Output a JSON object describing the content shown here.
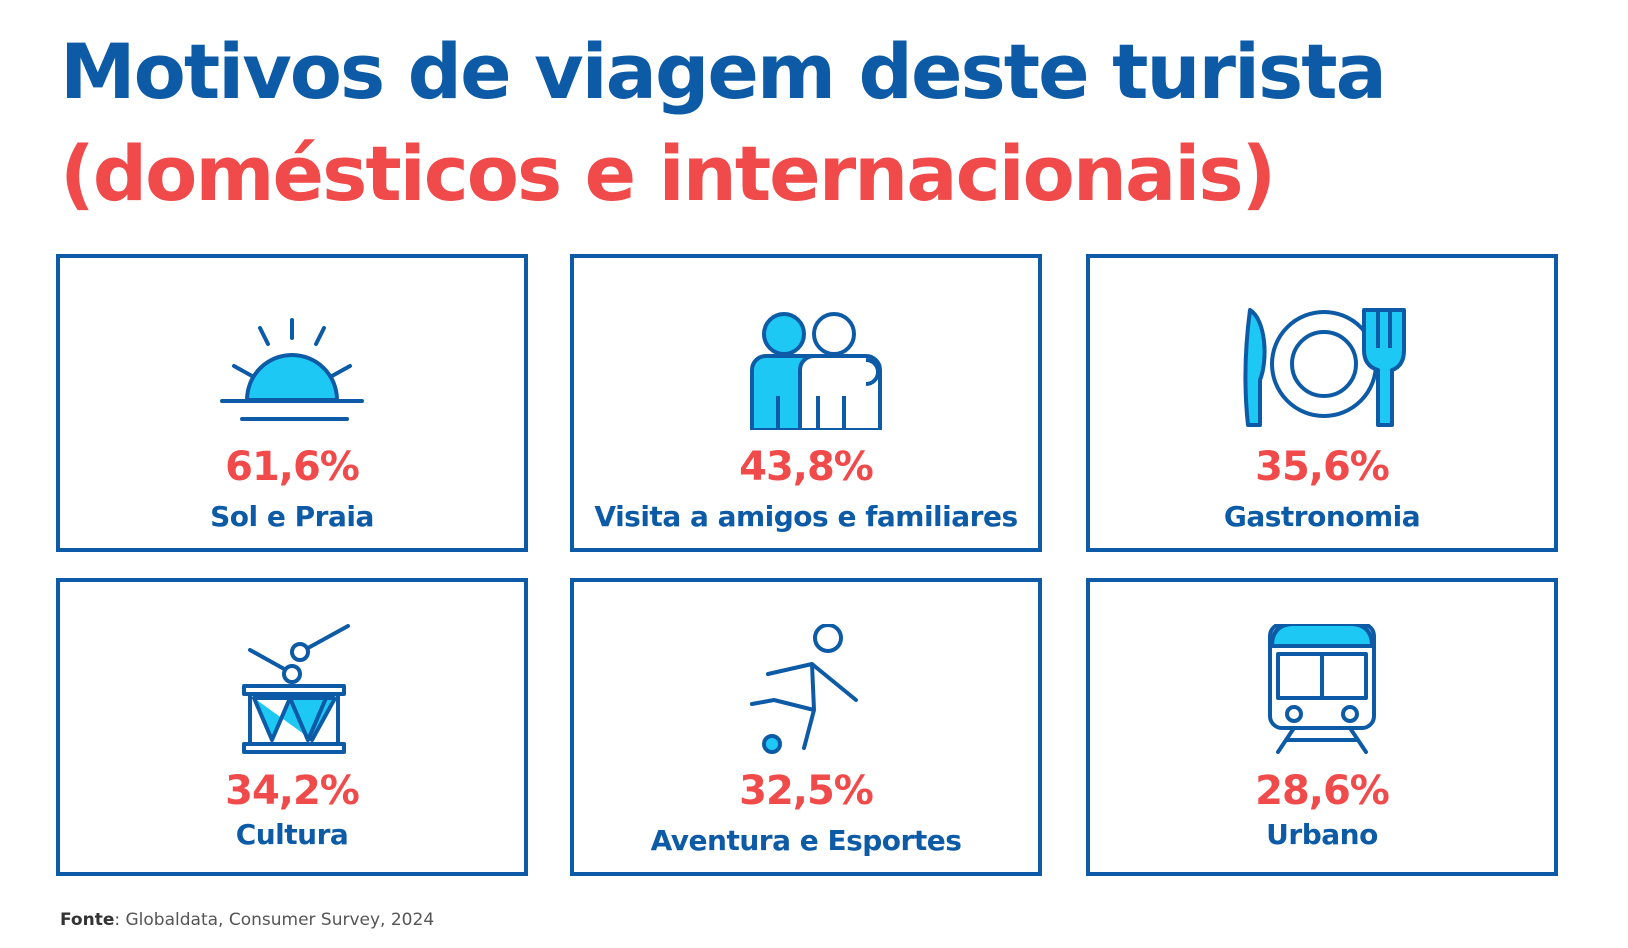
{
  "title": {
    "line1": "Motivos de viagem deste turista",
    "line2": "(domésticos e internacionais)"
  },
  "colors": {
    "blue": "#0d5ba6",
    "red": "#f04a4a",
    "light_blue": "#1ec8f5"
  },
  "cards": [
    {
      "percent": "61,6%",
      "label": "Sol e Praia",
      "icon": "sunset-icon"
    },
    {
      "percent": "43,8%",
      "label": "Visita a amigos e familiares",
      "icon": "people-icon"
    },
    {
      "percent": "35,6%",
      "label": "Gastronomia",
      "icon": "plate-cutlery-icon"
    },
    {
      "percent": "34,2%",
      "label": "Cultura",
      "icon": "drum-icon"
    },
    {
      "percent": "32,5%",
      "label": "Aventura e Esportes",
      "icon": "soccer-player-icon"
    },
    {
      "percent": "28,6%",
      "label": "Urbano",
      "icon": "train-icon"
    }
  ],
  "source": {
    "label": "Fonte",
    "text": ": Globaldata, Consumer Survey, 2024"
  }
}
